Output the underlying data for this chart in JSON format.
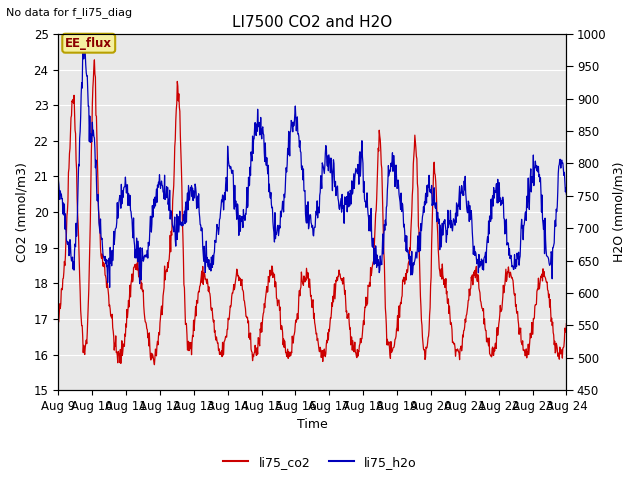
{
  "title": "LI7500 CO2 and H2O",
  "top_left_text": "No data for f_li75_diag",
  "xlabel": "Time",
  "ylabel_left": "CO2 (mmol/m3)",
  "ylabel_right": "H2O (mmol/m3)",
  "ylim_left": [
    15.0,
    25.0
  ],
  "ylim_right": [
    450,
    1000
  ],
  "yticks_left": [
    15.0,
    16.0,
    17.0,
    18.0,
    19.0,
    20.0,
    21.0,
    22.0,
    23.0,
    24.0,
    25.0
  ],
  "yticks_right": [
    450,
    500,
    550,
    600,
    650,
    700,
    750,
    800,
    850,
    900,
    950,
    1000
  ],
  "xtick_labels": [
    "Aug 9",
    "Aug 10",
    "Aug 11",
    "Aug 12",
    "Aug 13",
    "Aug 14",
    "Aug 15",
    "Aug 16",
    "Aug 17",
    "Aug 18",
    "Aug 19",
    "Aug 20",
    "Aug 21",
    "Aug 22",
    "Aug 23",
    "Aug 24"
  ],
  "ee_flux_label": "EE_flux",
  "ee_flux_bg": "#f5f0a0",
  "ee_flux_border": "#b8a000",
  "legend_entries": [
    "li75_co2",
    "li75_h2o"
  ],
  "co2_color": "#cc0000",
  "h2o_color": "#0000bb",
  "plot_bg": "#e8e8e8",
  "fig_bg": "#ffffff",
  "grid_color": "#ffffff",
  "title_fontsize": 11,
  "label_fontsize": 9,
  "tick_fontsize": 8.5,
  "figwidth": 6.4,
  "figheight": 4.8,
  "dpi": 100
}
